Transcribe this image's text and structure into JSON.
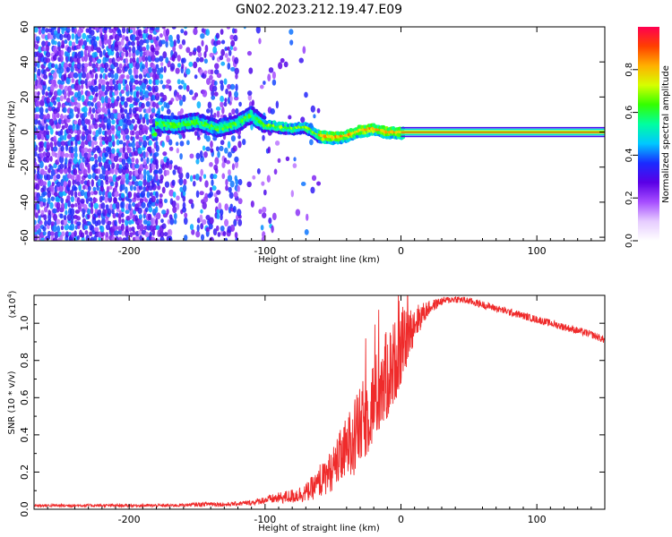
{
  "figure": {
    "title": "GN02.2023.212.19.47.E09"
  },
  "chart_data": [
    {
      "type": "heatmap",
      "xlabel": "Height of straight line (km)",
      "ylabel": "Frequency (Hz)",
      "xlim": [
        -270,
        150
      ],
      "ylim": [
        -62,
        60
      ],
      "x_ticks": [
        {
          "value": -200,
          "label": "-200"
        },
        {
          "value": -100,
          "label": "-100"
        },
        {
          "value": 0,
          "label": "0"
        },
        {
          "value": 100,
          "label": "100"
        }
      ],
      "y_ticks": [
        {
          "value": -60,
          "label": "-60"
        },
        {
          "value": -40,
          "label": "-40"
        },
        {
          "value": -20,
          "label": "-20"
        },
        {
          "value": 0,
          "label": "0"
        },
        {
          "value": 20,
          "label": "20"
        },
        {
          "value": 40,
          "label": "40"
        },
        {
          "value": 60,
          "label": "60"
        }
      ],
      "colorbar": {
        "label": "Normalized spectral amplitude",
        "range": [
          0.0,
          1.0
        ],
        "ticks": [
          {
            "value": 0.0,
            "label": "0.0"
          },
          {
            "value": 0.2,
            "label": "0.2"
          },
          {
            "value": 0.4,
            "label": "0.4"
          },
          {
            "value": 0.6,
            "label": "0.6"
          },
          {
            "value": 0.8,
            "label": "0.8"
          }
        ],
        "colormap": [
          "#ffffff",
          "#e6ccff",
          "#a64dff",
          "#5a00e6",
          "#1a2bff",
          "#00c8ff",
          "#00ffa0",
          "#33ff00",
          "#d6ff00",
          "#ffb000",
          "#ff4000",
          "#ff0050"
        ]
      },
      "ridge": {
        "description_free_points_x": [
          -180,
          -165,
          -150,
          -135,
          -120,
          -110,
          -100,
          -90,
          -80,
          -70,
          -60,
          -50,
          -40,
          -30,
          -20,
          -10,
          0,
          150
        ],
        "points_y": [
          5,
          4,
          6,
          2,
          5,
          10,
          4,
          3,
          2,
          3,
          -2,
          -3,
          -2,
          1,
          2,
          0,
          0,
          0
        ]
      }
    },
    {
      "type": "line",
      "xlabel": "Height of straight line (km)",
      "ylabel": "SNR (10 * v/v)",
      "y_scale_label": "(x10",
      "y_scale_exp": "4",
      "xlim": [
        -270,
        150
      ],
      "ylim": [
        0,
        1.15
      ],
      "x_ticks": [
        {
          "value": -200,
          "label": "-200"
        },
        {
          "value": -100,
          "label": "-100"
        },
        {
          "value": 0,
          "label": "0"
        },
        {
          "value": 100,
          "label": "100"
        }
      ],
      "y_ticks": [
        {
          "value": 0.0,
          "label": "0.0"
        },
        {
          "value": 0.2,
          "label": "0.2"
        },
        {
          "value": 0.4,
          "label": "0.4"
        },
        {
          "value": 0.6,
          "label": "0.6"
        },
        {
          "value": 0.8,
          "label": "0.8"
        },
        {
          "value": 1.0,
          "label": "1.0"
        }
      ],
      "line_color": "#ef2b2b",
      "series": [
        {
          "x": [
            -270,
            -250,
            -230,
            -210,
            -190,
            -170,
            -150,
            -140,
            -130,
            -120,
            -110,
            -100,
            -90,
            -80,
            -70,
            -60,
            -50,
            -40,
            -30,
            -20,
            -10,
            0,
            10,
            20,
            30,
            40,
            50,
            60,
            70,
            80,
            90,
            100,
            110,
            120,
            130,
            140,
            150
          ],
          "values": [
            0.02,
            0.02,
            0.02,
            0.02,
            0.02,
            0.02,
            0.025,
            0.03,
            0.025,
            0.03,
            0.035,
            0.05,
            0.06,
            0.07,
            0.09,
            0.14,
            0.22,
            0.32,
            0.44,
            0.58,
            0.72,
            0.86,
            1.0,
            1.08,
            1.12,
            1.13,
            1.12,
            1.1,
            1.08,
            1.06,
            1.04,
            1.02,
            1.0,
            0.98,
            0.96,
            0.94,
            0.91
          ],
          "noise_amplitude": [
            0.008,
            0.008,
            0.008,
            0.008,
            0.008,
            0.008,
            0.01,
            0.015,
            0.01,
            0.012,
            0.015,
            0.02,
            0.03,
            0.04,
            0.05,
            0.08,
            0.12,
            0.18,
            0.22,
            0.24,
            0.25,
            0.2,
            0.1,
            0.04,
            0.02,
            0.02,
            0.02,
            0.02,
            0.02,
            0.02,
            0.02,
            0.02,
            0.02,
            0.02,
            0.02,
            0.02,
            0.02
          ]
        }
      ]
    }
  ]
}
